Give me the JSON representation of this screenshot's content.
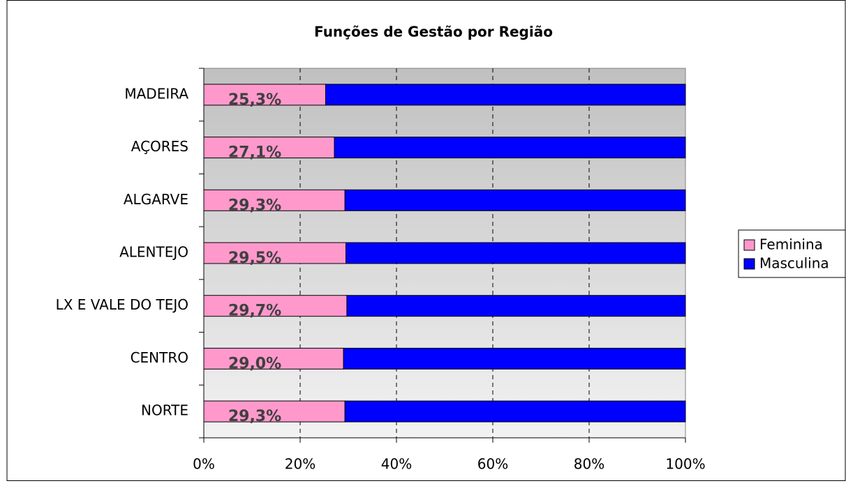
{
  "chart_data": {
    "type": "stacked_bar_horizontal",
    "title": "Funções de Gestão por Região",
    "categories": [
      "MADEIRA",
      "AÇORES",
      "ALGARVE",
      "ALENTEJO",
      "LX E VALE DO TEJO",
      "CENTRO",
      "NORTE"
    ],
    "series": [
      {
        "name": "Feminina",
        "color": "#ff99cc",
        "values": [
          25.3,
          27.1,
          29.3,
          29.5,
          29.7,
          29.0,
          29.3
        ],
        "value_labels": [
          "25,3%",
          "27,1%",
          "29,3%",
          "29,5%",
          "29,7%",
          "29,0%",
          "29,3%"
        ]
      },
      {
        "name": "Masculina",
        "color": "#0000ff",
        "values": [
          74.7,
          72.9,
          70.7,
          70.5,
          70.3,
          71.0,
          70.7
        ]
      }
    ],
    "xlim": [
      0,
      100
    ],
    "xticks": [
      {
        "value": 0,
        "label": "0%"
      },
      {
        "value": 20,
        "label": "20%"
      },
      {
        "value": 40,
        "label": "40%"
      },
      {
        "value": 60,
        "label": "60%"
      },
      {
        "value": 80,
        "label": "80%"
      },
      {
        "value": 100,
        "label": "100%"
      }
    ],
    "grid": true,
    "legend": "right"
  }
}
